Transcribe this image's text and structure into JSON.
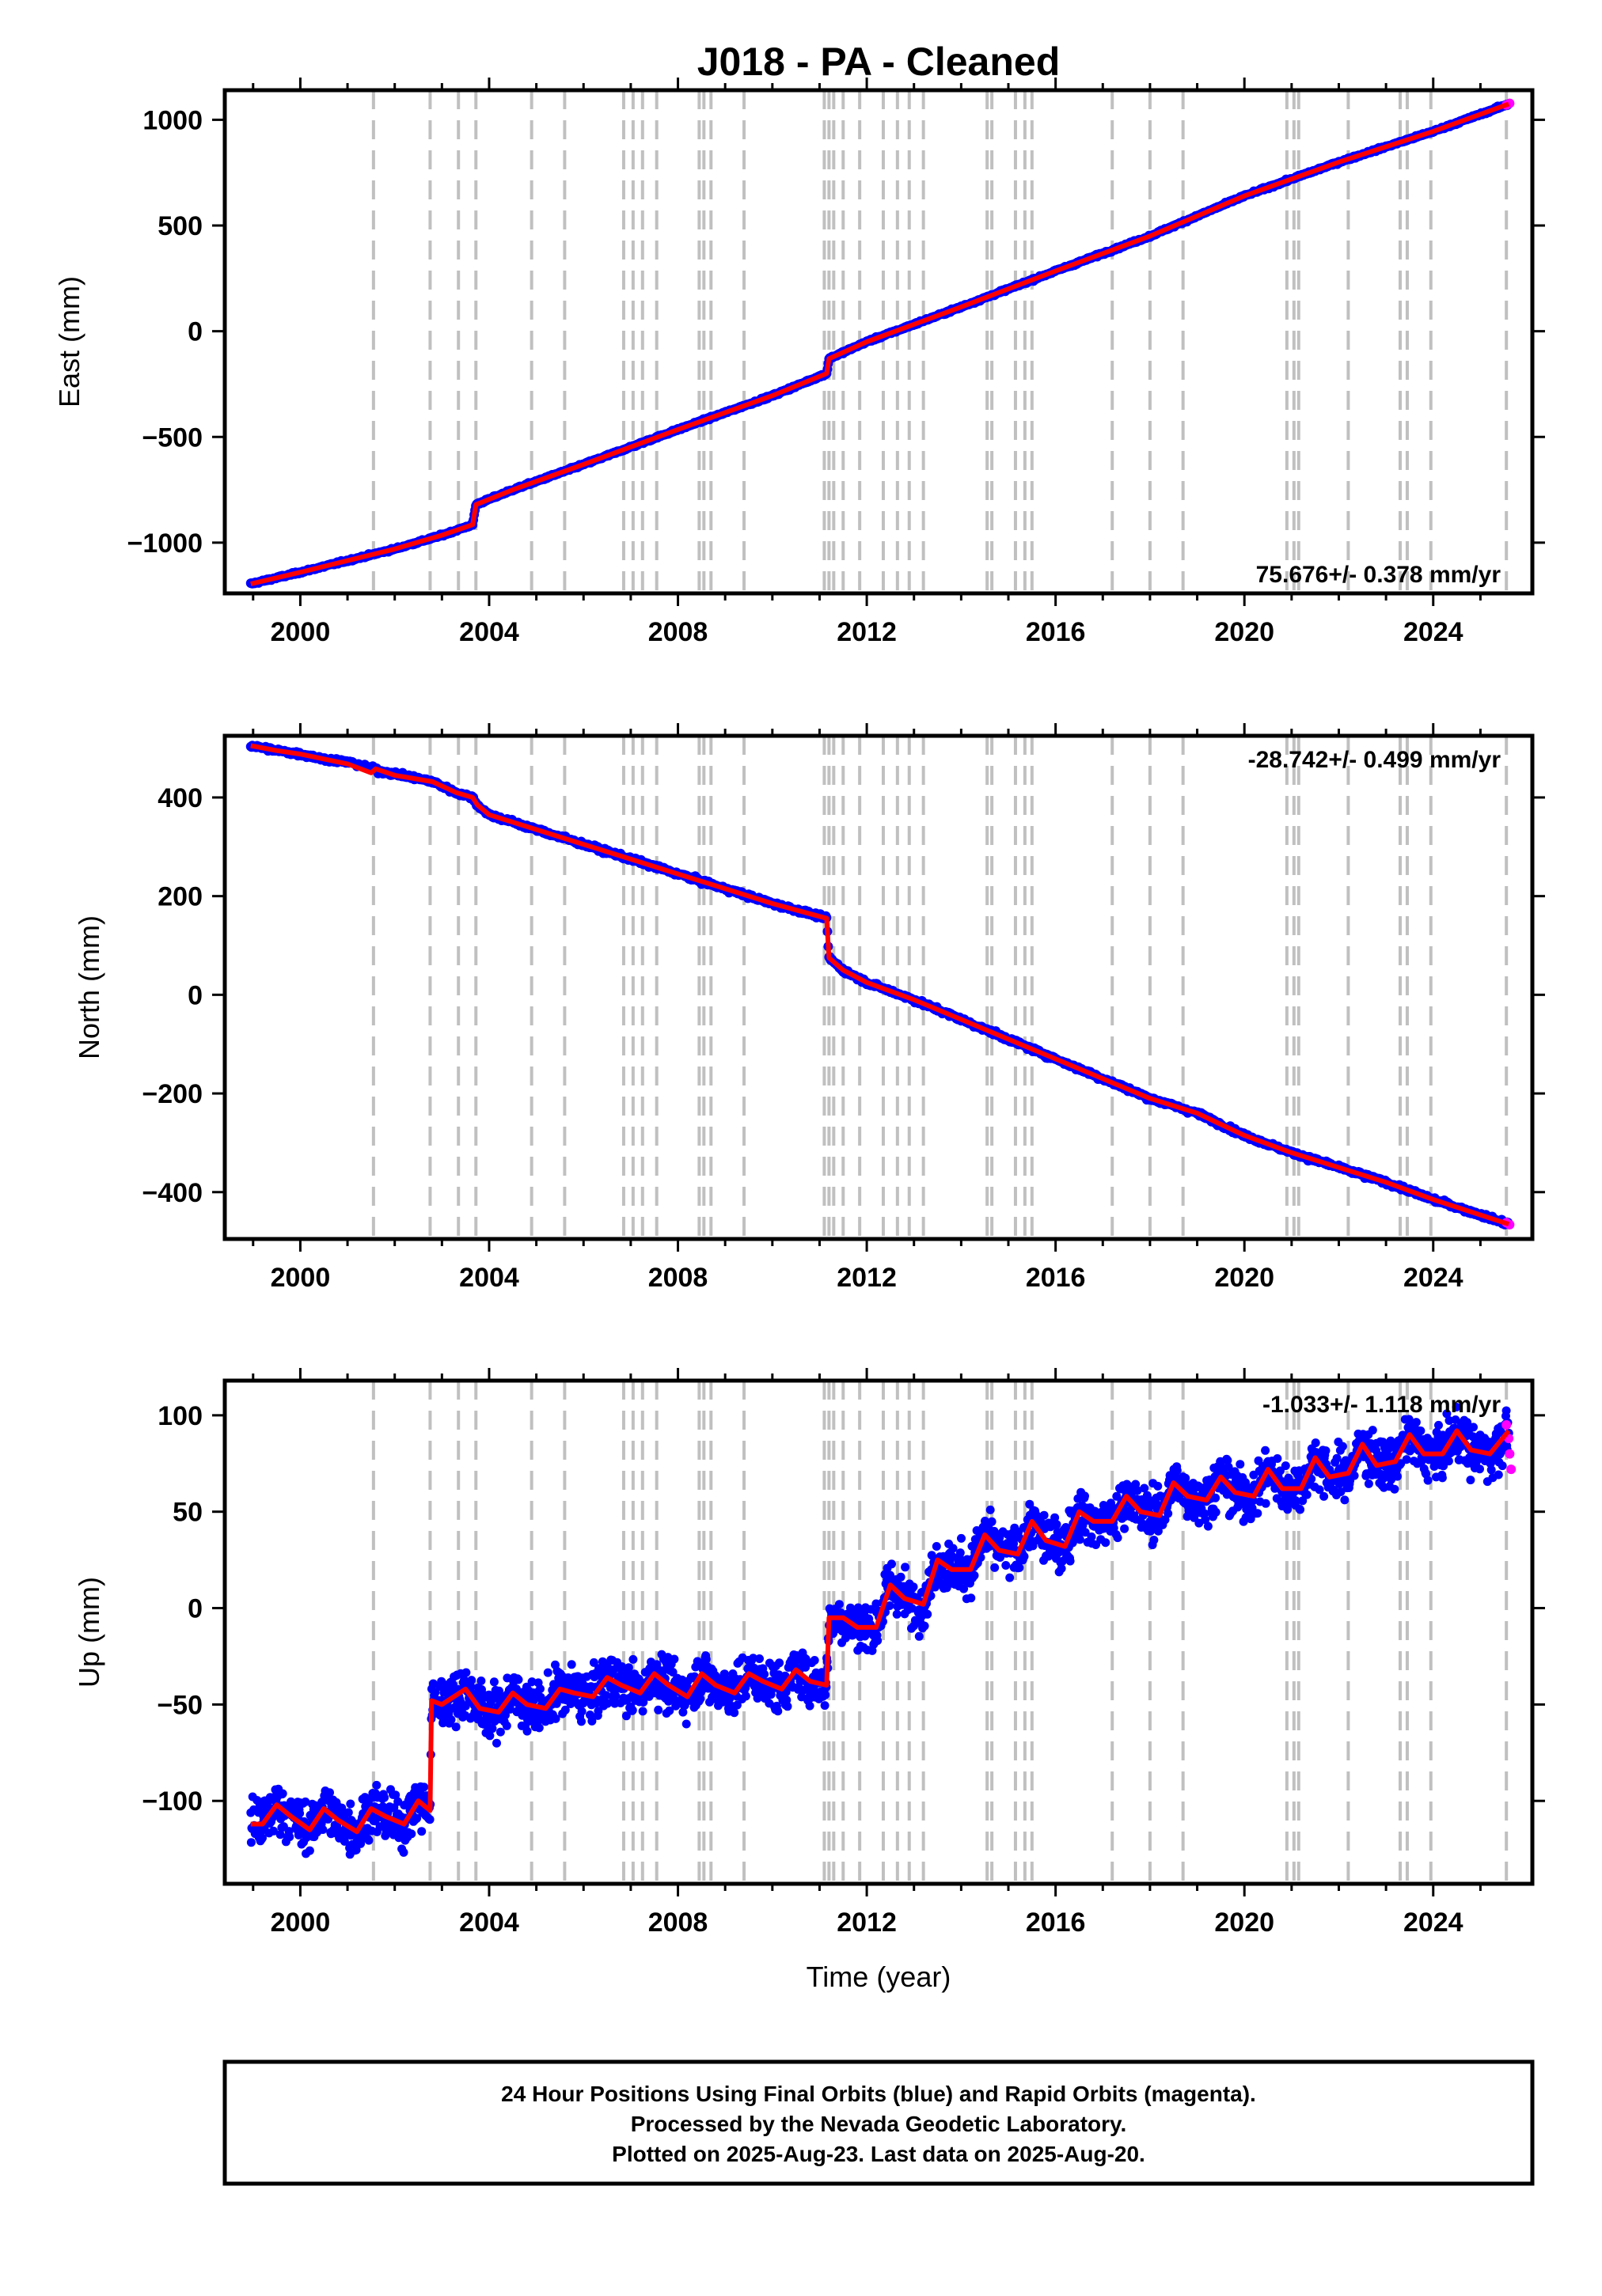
{
  "chart_data": [
    {
      "type": "scatter",
      "title": "J018  - PA - Cleaned",
      "ylabel": "East (mm)",
      "xlabel": "",
      "xlim": [
        1998.4,
        2026.1
      ],
      "ylim": [
        -1240,
        1140
      ],
      "xticks": [
        2000,
        2004,
        2008,
        2012,
        2016,
        2020,
        2024
      ],
      "xtick_labels": [
        "2000",
        "2004",
        "2008",
        "2012",
        "2016",
        "2020",
        "2024"
      ],
      "yticks": [
        -1000,
        -500,
        0,
        500,
        1000
      ],
      "ytick_labels": [
        "−1000",
        "−500",
        "0",
        "500",
        "1000"
      ],
      "rate_label": "75.676+/- 0.378 mm/yr",
      "rate_position": "bottom-right",
      "series": [
        {
          "name": "Final Orbits",
          "color": "#0000ff",
          "x": [
            1998.95,
            2000.0,
            2001.0,
            2002.0,
            2003.0,
            2003.65,
            2003.72,
            2004.5,
            2006.0,
            2008.0,
            2010.0,
            2011.15,
            2011.2,
            2012.0,
            2014.0,
            2016.0,
            2018.0,
            2020.0,
            2022.0,
            2024.0,
            2025.6
          ],
          "y": [
            -1195,
            -1140,
            -1085,
            -1030,
            -965,
            -915,
            -820,
            -750,
            -630,
            -465,
            -305,
            -200,
            -130,
            -50,
            115,
            285,
            450,
            640,
            800,
            945,
            1075
          ]
        },
        {
          "name": "Rapid Orbits",
          "color": "#ff00ff",
          "x": [
            2025.55,
            2025.62
          ],
          "y": [
            1070,
            1078
          ]
        }
      ],
      "model": {
        "color": "#ff0000",
        "x": [
          1998.95,
          2000.0,
          2001.0,
          2002.0,
          2003.0,
          2003.65,
          2003.72,
          2004.5,
          2006.0,
          2008.0,
          2010.0,
          2011.15,
          2011.2,
          2012.0,
          2014.0,
          2016.0,
          2018.0,
          2020.0,
          2022.0,
          2024.0,
          2025.6
        ],
        "y": [
          -1195,
          -1140,
          -1085,
          -1030,
          -965,
          -915,
          -820,
          -750,
          -630,
          -465,
          -305,
          -200,
          -130,
          -50,
          115,
          285,
          450,
          640,
          800,
          945,
          1075
        ]
      },
      "offsets": [
        2001.55,
        2002.75,
        2003.35,
        2003.72,
        2004.9,
        2005.6,
        2006.85,
        2007.05,
        2007.25,
        2007.55,
        2008.45,
        2008.55,
        2008.7,
        2009.4,
        2011.1,
        2011.2,
        2011.3,
        2011.5,
        2011.85,
        2012.35,
        2012.65,
        2012.9,
        2013.2,
        2014.55,
        2014.65,
        2015.15,
        2015.35,
        2015.5,
        2017.2,
        2018.0,
        2018.7,
        2020.9,
        2021.05,
        2021.15,
        2022.2,
        2023.3,
        2023.45,
        2023.95,
        2025.55
      ]
    },
    {
      "type": "scatter",
      "title": "",
      "ylabel": "North (mm)",
      "xlabel": "",
      "xlim": [
        1998.4,
        2026.1
      ],
      "ylim": [
        -495,
        525
      ],
      "xticks": [
        2000,
        2004,
        2008,
        2012,
        2016,
        2020,
        2024
      ],
      "xtick_labels": [
        "2000",
        "2004",
        "2008",
        "2012",
        "2016",
        "2020",
        "2024"
      ],
      "yticks": [
        -400,
        -200,
        0,
        200,
        400
      ],
      "ytick_labels": [
        "−400",
        "−200",
        "0",
        "200",
        "400"
      ],
      "rate_label": "-28.742+/- 0.499 mm/yr",
      "rate_position": "top-right",
      "series": [
        {
          "name": "Final Orbits",
          "color": "#0000ff",
          "x": [
            1998.95,
            1999.5,
            2000.0,
            2000.5,
            2001.0,
            2001.5,
            2001.6,
            2002.0,
            2002.8,
            2003.3,
            2003.65,
            2003.75,
            2004.0,
            2005.0,
            2006.0,
            2007.0,
            2008.0,
            2009.0,
            2010.0,
            2011.15,
            2011.2,
            2011.5,
            2012.0,
            2013.0,
            2014.0,
            2015.0,
            2016.0,
            2017.0,
            2018.0,
            2019.0,
            2020.0,
            2021.0,
            2022.0,
            2023.0,
            2024.0,
            2025.6
          ],
          "y": [
            505,
            495,
            488,
            478,
            472,
            460,
            455,
            448,
            432,
            410,
            400,
            385,
            365,
            335,
            305,
            275,
            245,
            215,
            185,
            155,
            75,
            50,
            25,
            -10,
            -50,
            -90,
            -130,
            -170,
            -210,
            -240,
            -285,
            -320,
            -350,
            -380,
            -415,
            -465
          ]
        },
        {
          "name": "Rapid Orbits",
          "color": "#ff00ff",
          "x": [
            2025.55,
            2025.62
          ],
          "y": [
            -462,
            -466
          ]
        }
      ],
      "model": {
        "color": "#ff0000",
        "x": [
          1998.95,
          1999.5,
          2000.0,
          2000.5,
          2001.0,
          2001.5,
          2001.6,
          2002.0,
          2002.8,
          2003.3,
          2003.65,
          2003.75,
          2004.0,
          2005.0,
          2006.0,
          2007.0,
          2008.0,
          2009.0,
          2010.0,
          2011.15,
          2011.2,
          2011.5,
          2012.0,
          2013.0,
          2014.0,
          2015.0,
          2016.0,
          2017.0,
          2018.0,
          2019.0,
          2020.0,
          2021.0,
          2022.0,
          2023.0,
          2024.0,
          2025.6
        ],
        "y": [
          505,
          495,
          488,
          478,
          468,
          450,
          458,
          445,
          432,
          410,
          400,
          385,
          365,
          335,
          305,
          275,
          245,
          215,
          185,
          155,
          75,
          50,
          25,
          -10,
          -50,
          -90,
          -130,
          -170,
          -210,
          -240,
          -285,
          -320,
          -350,
          -380,
          -415,
          -465
        ]
      },
      "offsets": [
        2001.55,
        2002.75,
        2003.35,
        2003.72,
        2004.9,
        2005.6,
        2006.85,
        2007.05,
        2007.25,
        2007.55,
        2008.45,
        2008.55,
        2008.7,
        2009.4,
        2011.1,
        2011.2,
        2011.3,
        2011.5,
        2011.85,
        2012.35,
        2012.65,
        2012.9,
        2013.2,
        2014.55,
        2014.65,
        2015.15,
        2015.35,
        2015.5,
        2017.2,
        2018.0,
        2018.7,
        2020.9,
        2021.05,
        2021.15,
        2022.2,
        2023.3,
        2023.45,
        2023.95,
        2025.55
      ]
    },
    {
      "type": "scatter",
      "title": "",
      "ylabel": "Up (mm)",
      "xlabel": "Time (year)",
      "xlim": [
        1998.4,
        2026.1
      ],
      "ylim": [
        -143,
        118
      ],
      "xticks": [
        2000,
        2004,
        2008,
        2012,
        2016,
        2020,
        2024
      ],
      "xtick_labels": [
        "2000",
        "2004",
        "2008",
        "2012",
        "2016",
        "2020",
        "2024"
      ],
      "yticks": [
        -100,
        -50,
        0,
        50,
        100
      ],
      "ytick_labels": [
        "−100",
        "−50",
        "0",
        "50",
        "100"
      ],
      "rate_label": "-1.033+/- 1.118 mm/yr",
      "rate_position": "top-right",
      "series": [
        {
          "name": "Final Orbits",
          "color": "#0000ff",
          "x": [
            1998.95,
            1999.5,
            2000.0,
            2000.5,
            2001.0,
            2001.5,
            2002.0,
            2002.5,
            2002.75,
            2002.78,
            2003.0,
            2004.0,
            2005.0,
            2006.0,
            2007.0,
            2008.0,
            2009.0,
            2010.0,
            2011.1,
            2011.15,
            2011.5,
            2012.0,
            2012.5,
            2013.0,
            2014.0,
            2015.0,
            2016.0,
            2017.0,
            2018.0,
            2019.0,
            2020.0,
            2021.0,
            2022.0,
            2023.0,
            2024.0,
            2025.6
          ],
          "y": [
            -110,
            -100,
            -112,
            -105,
            -112,
            -102,
            -108,
            -98,
            -100,
            -48,
            -50,
            -45,
            -48,
            -42,
            -40,
            -40,
            -42,
            -38,
            -38,
            -5,
            -2,
            -5,
            15,
            15,
            25,
            30,
            35,
            45,
            50,
            62,
            58,
            65,
            70,
            75,
            85,
            88
          ]
        },
        {
          "name": "Rapid Orbits",
          "color": "#ff00ff",
          "x": [
            2025.55,
            2025.6,
            2025.62,
            2025.65
          ],
          "y": [
            95,
            88,
            80,
            72
          ]
        }
      ],
      "model": {
        "color": "#ff0000",
        "x": [
          1998.95,
          1999.2,
          1999.5,
          1999.8,
          2000.2,
          2000.5,
          2000.8,
          2001.2,
          2001.5,
          2001.8,
          2002.2,
          2002.5,
          2002.75,
          2002.78,
          2003.0,
          2003.5,
          2003.8,
          2004.2,
          2004.5,
          2004.8,
          2005.2,
          2005.5,
          2005.8,
          2006.2,
          2006.5,
          2006.8,
          2007.2,
          2007.5,
          2007.8,
          2008.2,
          2008.5,
          2008.8,
          2009.2,
          2009.5,
          2009.8,
          2010.2,
          2010.5,
          2010.8,
          2011.15,
          2011.2,
          2011.5,
          2011.8,
          2012.2,
          2012.5,
          2012.8,
          2013.2,
          2013.5,
          2013.8,
          2014.2,
          2014.5,
          2014.8,
          2015.2,
          2015.5,
          2015.8,
          2016.2,
          2016.5,
          2016.8,
          2017.2,
          2017.5,
          2017.8,
          2018.2,
          2018.5,
          2018.8,
          2019.2,
          2019.5,
          2019.8,
          2020.2,
          2020.5,
          2020.8,
          2021.2,
          2021.5,
          2021.8,
          2022.2,
          2022.5,
          2022.8,
          2023.2,
          2023.5,
          2023.8,
          2024.2,
          2024.5,
          2024.8,
          2025.2,
          2025.6
        ],
        "y": [
          -112,
          -112,
          -102,
          -108,
          -115,
          -104,
          -110,
          -116,
          -104,
          -108,
          -112,
          -100,
          -105,
          -48,
          -50,
          -42,
          -52,
          -54,
          -44,
          -50,
          -52,
          -42,
          -44,
          -46,
          -36,
          -40,
          -44,
          -34,
          -40,
          -46,
          -34,
          -40,
          -44,
          -34,
          -38,
          -42,
          -32,
          -38,
          -40,
          -5,
          -5,
          -10,
          -10,
          12,
          5,
          2,
          25,
          20,
          20,
          38,
          30,
          28,
          45,
          35,
          32,
          50,
          45,
          45,
          58,
          50,
          48,
          65,
          58,
          56,
          68,
          60,
          58,
          72,
          62,
          62,
          78,
          68,
          70,
          85,
          74,
          76,
          90,
          80,
          80,
          92,
          82,
          80,
          92
        ]
      },
      "offsets": [
        2001.55,
        2002.75,
        2003.35,
        2003.72,
        2004.9,
        2005.6,
        2006.85,
        2007.05,
        2007.25,
        2007.55,
        2008.45,
        2008.55,
        2008.7,
        2009.4,
        2011.1,
        2011.2,
        2011.3,
        2011.5,
        2011.85,
        2012.35,
        2012.65,
        2012.9,
        2013.2,
        2014.55,
        2014.65,
        2015.15,
        2015.35,
        2015.5,
        2017.2,
        2018.0,
        2018.7,
        2020.9,
        2021.05,
        2021.15,
        2022.2,
        2023.3,
        2023.45,
        2023.95,
        2025.55
      ]
    }
  ],
  "footer": {
    "line1": "24 Hour Positions Using Final Orbits (blue) and Rapid Orbits (magenta).",
    "line2": "Processed by the Nevada Geodetic Laboratory.",
    "line3": "Plotted on 2025-Aug-23. Last data on 2025-Aug-20."
  }
}
